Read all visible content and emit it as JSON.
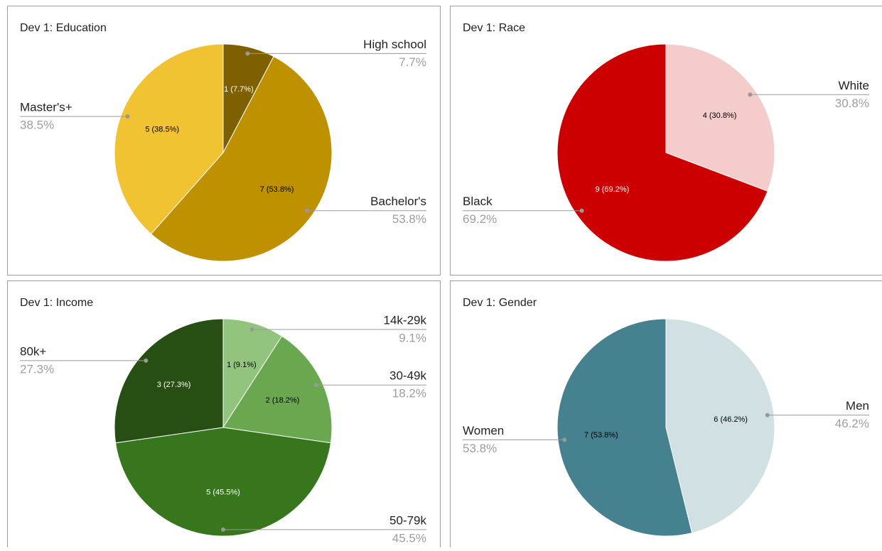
{
  "chart_data": [
    {
      "type": "pie",
      "title": "Dev 1: Education",
      "categories": [
        "High school",
        "Bachelor's",
        "Master's+"
      ],
      "values": [
        1,
        7,
        5
      ],
      "value_labels": [
        "1 (7.7%)",
        "7 (53.8%)",
        "5 (38.5%)"
      ],
      "percent_labels": [
        "7.7%",
        "53.8%",
        "38.5%"
      ],
      "colors": [
        "#7f6000",
        "#bf9000",
        "#f1c232"
      ]
    },
    {
      "type": "pie",
      "title": "Dev 1: Race",
      "categories": [
        "White",
        "Black"
      ],
      "values": [
        4,
        9
      ],
      "value_labels": [
        "4 (30.8%)",
        "9 (69.2%)"
      ],
      "percent_labels": [
        "30.8%",
        "69.2%"
      ],
      "colors": [
        "#f4cccc",
        "#cc0000"
      ]
    },
    {
      "type": "pie",
      "title": "Dev 1: Income",
      "categories": [
        "14k-29k",
        "30-49k",
        "50-79k",
        "80k+"
      ],
      "values": [
        1,
        2,
        5,
        3
      ],
      "value_labels": [
        "1 (9.1%)",
        "2 (18.2%)",
        "5 (45.5%)",
        "3 (27.3%)"
      ],
      "percent_labels": [
        "9.1%",
        "18.2%",
        "45.5%",
        "27.3%"
      ],
      "colors": [
        "#93c47d",
        "#6aa84f",
        "#38761d",
        "#274e13"
      ]
    },
    {
      "type": "pie",
      "title": "Dev 1: Gender",
      "categories": [
        "Men",
        "Women"
      ],
      "values": [
        6,
        7
      ],
      "value_labels": [
        "6 (46.2%)",
        "7 (53.8%)"
      ],
      "percent_labels": [
        "46.2%",
        "53.8%"
      ],
      "colors": [
        "#d0e0e3",
        "#45818e"
      ]
    }
  ]
}
